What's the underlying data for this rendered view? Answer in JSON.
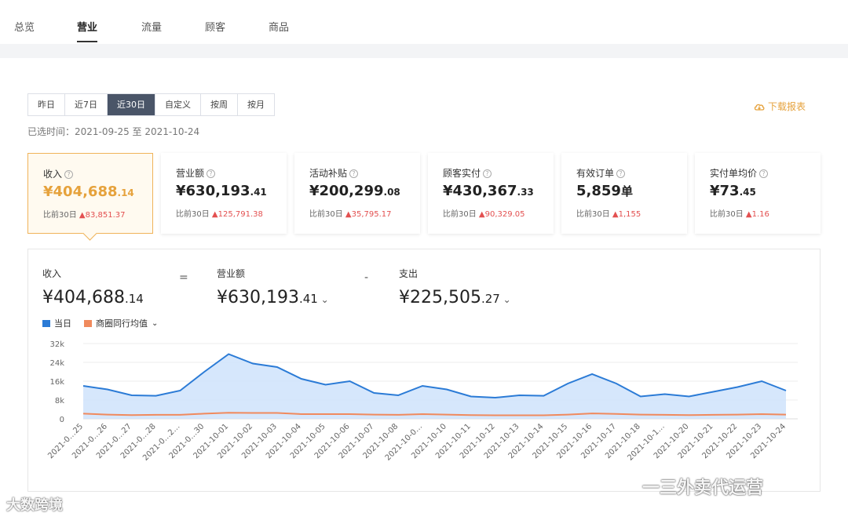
{
  "top_tabs": [
    {
      "label": "总览",
      "active": false
    },
    {
      "label": "营业",
      "active": true
    },
    {
      "label": "流量",
      "active": false
    },
    {
      "label": "顾客",
      "active": false
    },
    {
      "label": "商品",
      "active": false
    }
  ],
  "range_buttons": [
    {
      "label": "昨日",
      "active": false
    },
    {
      "label": "近7日",
      "active": false
    },
    {
      "label": "近30日",
      "active": true
    },
    {
      "label": "自定义",
      "active": false
    },
    {
      "label": "按周",
      "active": false
    },
    {
      "label": "按月",
      "active": false
    }
  ],
  "download_label": "下载报表",
  "download_icon": "cloud-download-icon",
  "selected_time": "已选时间：2021-09-25 至 2021-10-24",
  "cards": [
    {
      "label": "收入",
      "value_main": "¥404,688",
      "value_dec": ".14",
      "compare_prefix": "比前30日",
      "compare_value": "83,851.37",
      "active": true
    },
    {
      "label": "营业额",
      "value_main": "¥630,193",
      "value_dec": ".41",
      "compare_prefix": "比前30日",
      "compare_value": "125,791.38",
      "active": false
    },
    {
      "label": "活动补贴",
      "value_main": "¥200,299",
      "value_dec": ".08",
      "compare_prefix": "比前30日",
      "compare_value": "35,795.17",
      "active": false
    },
    {
      "label": "顾客实付",
      "value_main": "¥430,367",
      "value_dec": ".33",
      "compare_prefix": "比前30日",
      "compare_value": "90,329.05",
      "active": false
    },
    {
      "label": "有效订单",
      "value_main": "5,859",
      "value_dec": "单",
      "compare_prefix": "比前30日",
      "compare_value": "1,155",
      "active": false
    },
    {
      "label": "实付单均价",
      "value_main": "¥73",
      "value_dec": ".45",
      "compare_prefix": "比前30日",
      "compare_value": "1.16",
      "active": false
    }
  ],
  "formula": {
    "income": {
      "label": "收入",
      "main": "¥404,688",
      "dec": ".14"
    },
    "equals": "=",
    "revenue": {
      "label": "营业额",
      "main": "¥630,193",
      "dec": ".41"
    },
    "minus": "-",
    "expense": {
      "label": "支出",
      "main": "¥225,505",
      "dec": ".27"
    }
  },
  "legend": {
    "today": "当日",
    "peer": "商圈同行均值"
  },
  "colors": {
    "today": "#2b7bd6",
    "today_fill": "#cfe3fb",
    "peer": "#f08a5d",
    "accent": "#e6a23c",
    "up": "#e35050"
  },
  "watermarks": {
    "left": "大数跨境",
    "right": "一三外卖代运营"
  },
  "chart_data": {
    "type": "area",
    "x": [
      "2021-0…25",
      "2021-0…26",
      "2021-0…27",
      "2021-0…28",
      "2021-0…2…",
      "2021-0…30",
      "2021-10-01",
      "2021-10-02",
      "2021-10-03",
      "2021-10-04",
      "2021-10-05",
      "2021-10-06",
      "2021-10-07",
      "2021-10-08",
      "2021-10-0…",
      "2021-10-10",
      "2021-10-11",
      "2021-10-12",
      "2021-10-13",
      "2021-10-14",
      "2021-10-15",
      "2021-10-16",
      "2021-10-17",
      "2021-10-18",
      "2021-10-1…",
      "2021-10-20",
      "2021-10-21",
      "2021-10-22",
      "2021-10-23",
      "2021-10-24"
    ],
    "y_ticks": [
      "0",
      "8k",
      "16k",
      "24k",
      "32k"
    ],
    "ylim": [
      0,
      32000
    ],
    "grid": true,
    "series": [
      {
        "name": "当日",
        "values": [
          14000,
          12500,
          10000,
          9800,
          12000,
          20000,
          27500,
          23500,
          22000,
          17000,
          14500,
          16000,
          11000,
          10000,
          14000,
          12500,
          9500,
          9000,
          10000,
          9800,
          15000,
          19000,
          15000,
          9500,
          10500,
          9500,
          11500,
          13500,
          16000,
          12000
        ]
      },
      {
        "name": "商圈同行均值",
        "values": [
          2200,
          1800,
          1600,
          1700,
          1700,
          2200,
          2600,
          2500,
          2500,
          2000,
          2000,
          2000,
          1800,
          1700,
          2000,
          1800,
          1600,
          1500,
          1500,
          1500,
          1800,
          2300,
          2100,
          1800,
          1700,
          1600,
          1700,
          1800,
          2000,
          1800
        ]
      }
    ]
  }
}
